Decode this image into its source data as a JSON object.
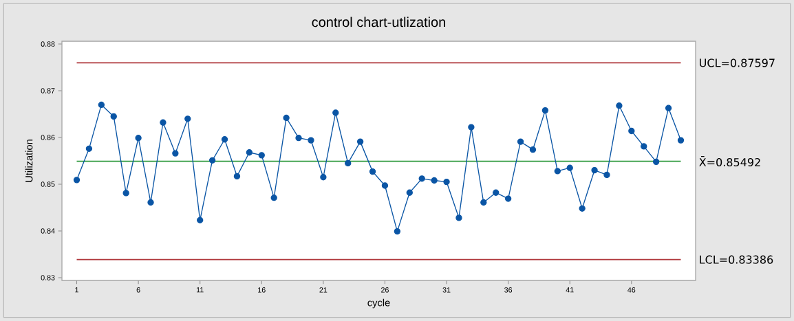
{
  "chart_data": {
    "type": "line",
    "title": "control chart-utlization",
    "xlabel": "cycle",
    "ylabel": "Utilization",
    "x": [
      1,
      2,
      3,
      4,
      5,
      6,
      7,
      8,
      9,
      10,
      11,
      12,
      13,
      14,
      15,
      16,
      17,
      18,
      19,
      20,
      21,
      22,
      23,
      24,
      25,
      26,
      27,
      28,
      29,
      30,
      31,
      32,
      33,
      34,
      35,
      36,
      37,
      38,
      39,
      40,
      41,
      42,
      43,
      44,
      45,
      46,
      47,
      48,
      49,
      50
    ],
    "series": [
      {
        "color": "#0a55a5",
        "values": [
          0.8509,
          0.8576,
          0.867,
          0.8645,
          0.8481,
          0.8599,
          0.8461,
          0.8632,
          0.8566,
          0.864,
          0.8423,
          0.8551,
          0.8596,
          0.8517,
          0.8568,
          0.8562,
          0.8471,
          0.8642,
          0.8599,
          0.8594,
          0.8515,
          0.8653,
          0.8545,
          0.8591,
          0.8527,
          0.8497,
          0.8399,
          0.8482,
          0.8512,
          0.8508,
          0.8505,
          0.8428,
          0.8622,
          0.8461,
          0.8482,
          0.8469,
          0.8591,
          0.8574,
          0.8658,
          0.8528,
          0.8535,
          0.8448,
          0.853,
          0.852,
          0.8668,
          0.8614,
          0.8581,
          0.8548,
          0.8663,
          0.8594
        ]
      }
    ],
    "marker": "circle",
    "line_style": "solid",
    "xlim": [
      -0.2,
      51.2
    ],
    "xticks": [
      1,
      6,
      11,
      16,
      21,
      26,
      31,
      36,
      41,
      46
    ],
    "ylim": [
      0.8294,
      0.8806
    ],
    "yticks": [
      0.83,
      0.84,
      0.85,
      0.86,
      0.87,
      0.88
    ],
    "ref_lines": [
      {
        "axis": "y",
        "value": 0.87597,
        "label": "UCL=0.87597",
        "color": "#b0383c"
      },
      {
        "axis": "y",
        "value": 0.85492,
        "label": "X̄=0.85492",
        "color": "#2e9a3e"
      },
      {
        "axis": "y",
        "value": 0.83386,
        "label": "LCL=0.83386",
        "color": "#b0383c"
      }
    ]
  }
}
